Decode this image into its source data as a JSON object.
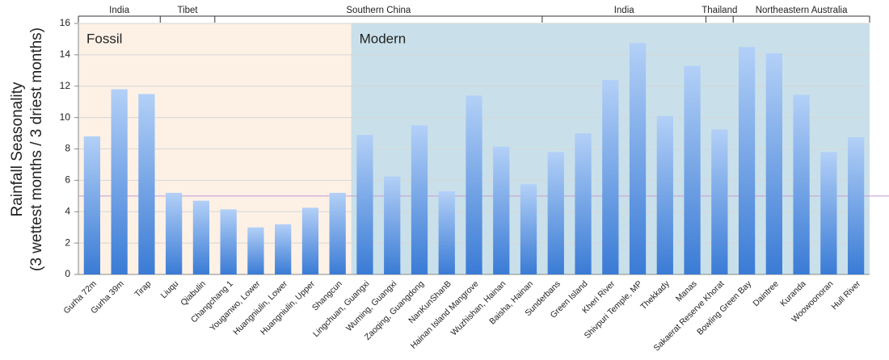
{
  "chart_data": {
    "type": "bar",
    "y_label": [
      "Rainfall Seasonality",
      "(3 wettest months / 3 driest months)"
    ],
    "categories": [
      "Gurha 72m",
      "Gurha 39m",
      "Tirap",
      "Liuqu",
      "Qiabulin",
      "Changchang 1",
      "Youganwo, Lower",
      "Huangniulin, Lower",
      "Huangniulin, Upper",
      "Shangcun",
      "Lingchuan, Guangxi",
      "Wuming, Guangxi",
      "Zaoqing, Guangdong",
      "NanKunShanB",
      "Hainan Island Mangrove",
      "Wuzhishan, Hainan",
      "Baisha, Hainan",
      "Sunderbans",
      "Green Island",
      "Kheri River",
      "Shivpuri Temple, MP",
      "Thekkady",
      "Manas",
      "Sakaerat Reserve Khorat",
      "Bowling Green Bay",
      "Daintree",
      "Kuranda",
      "Woowoonoran",
      "Hull River"
    ],
    "values": [
      8.8,
      11.8,
      11.5,
      5.2,
      4.7,
      4.15,
      3.0,
      3.2,
      4.25,
      5.2,
      8.9,
      6.25,
      9.5,
      5.3,
      11.4,
      8.15,
      5.75,
      7.8,
      9.0,
      12.4,
      14.75,
      10.1,
      13.3,
      9.25,
      14.5,
      14.1,
      11.45,
      7.8,
      8.75
    ],
    "color_top": "#b3d0f7",
    "color_bottom": "#3a7bd5",
    "groups": [
      {
        "label": "India",
        "span": 3
      },
      {
        "label": "Tibet",
        "span": 2
      },
      {
        "label": "Southern China",
        "span": 12
      },
      {
        "label": "India",
        "span": 6
      },
      {
        "label": "Thailand",
        "span": 1
      },
      {
        "label": "Northeastern Australia",
        "span": 5
      }
    ],
    "panels": [
      {
        "label": "Fossil",
        "span": 10,
        "color": "#fdf1e6"
      },
      {
        "label": "Modern",
        "span": 19,
        "color": "#c9e0ea"
      }
    ],
    "reference_line": 5,
    "reference_color": "#c9a3d6",
    "ylim": [
      0,
      16
    ],
    "yticks": [
      0,
      2,
      4,
      6,
      8,
      10,
      12,
      14,
      16
    ],
    "grid": true
  }
}
